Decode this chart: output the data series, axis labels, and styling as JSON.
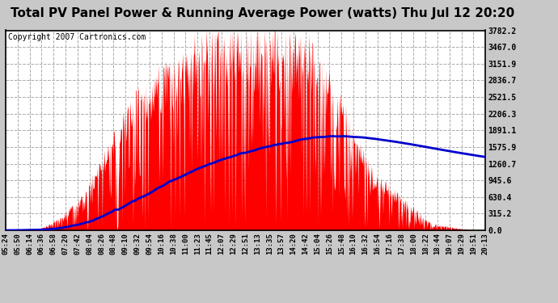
{
  "title": "Total PV Panel Power & Running Average Power (watts) Thu Jul 12 20:20",
  "copyright": "Copyright 2007 Cartronics.com",
  "title_fontsize": 11,
  "copyright_fontsize": 7,
  "bg_color": "#c8c8c8",
  "plot_bg_color": "#ffffff",
  "bar_color": "#ff0000",
  "line_color": "#0000cc",
  "line_width": 2.0,
  "ylim": [
    0,
    3782.2
  ],
  "yticks": [
    0.0,
    315.2,
    630.4,
    945.6,
    1260.7,
    1575.9,
    1891.1,
    2206.3,
    2521.5,
    2836.7,
    3151.9,
    3467.0,
    3782.2
  ],
  "xtick_labels": [
    "05:24",
    "05:50",
    "06:14",
    "06:36",
    "06:58",
    "07:20",
    "07:42",
    "08:04",
    "08:26",
    "08:48",
    "09:10",
    "09:32",
    "09:54",
    "10:16",
    "10:38",
    "11:00",
    "11:23",
    "11:45",
    "12:07",
    "12:29",
    "12:51",
    "13:13",
    "13:35",
    "13:57",
    "14:20",
    "14:42",
    "15:04",
    "15:26",
    "15:48",
    "16:10",
    "16:32",
    "16:54",
    "17:16",
    "17:38",
    "18:00",
    "18:22",
    "18:44",
    "19:07",
    "19:29",
    "19:51",
    "20:13"
  ]
}
